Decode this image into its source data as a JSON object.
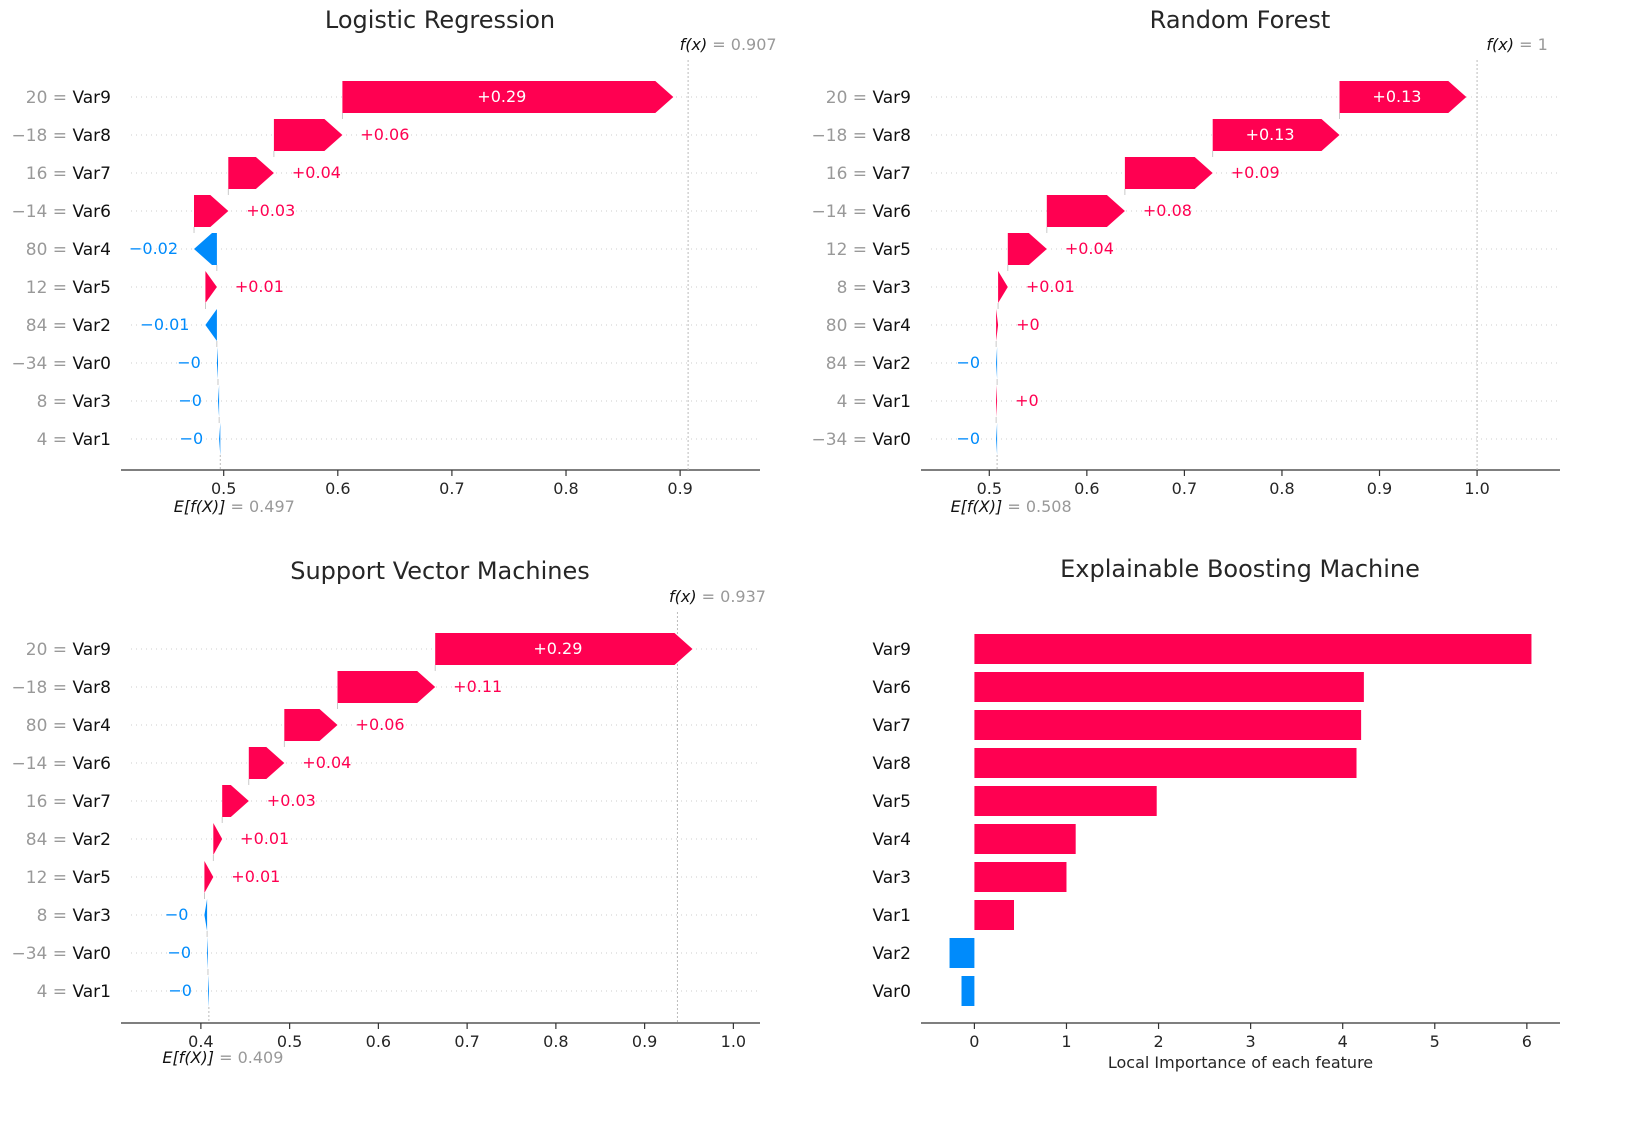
{
  "colors": {
    "positive": "#ff0051",
    "negative": "#008bfb",
    "muted": "#999999"
  },
  "chart_data": [
    {
      "type": "waterfall",
      "title": "Logistic Regression",
      "base_label": "E[f(X)]",
      "base_value": "= 0.497",
      "base": 0.497,
      "fx_label": "f(x)",
      "fx_value": "= 0.907",
      "fx": 0.907,
      "xlim": [
        0.41,
        0.97
      ],
      "xticks": [
        0.5,
        0.6,
        0.7,
        0.8,
        0.9
      ],
      "xtick_labels": [
        "0.5",
        "0.6",
        "0.7",
        "0.8",
        "0.9"
      ],
      "features": [
        {
          "value": "20",
          "name": "Var9",
          "contribution": 0.29,
          "label": "+0.29",
          "inside": true
        },
        {
          "value": "−18",
          "name": "Var8",
          "contribution": 0.06,
          "label": "+0.06"
        },
        {
          "value": "16",
          "name": "Var7",
          "contribution": 0.04,
          "label": "+0.04"
        },
        {
          "value": "−14",
          "name": "Var6",
          "contribution": 0.03,
          "label": "+0.03"
        },
        {
          "value": "80",
          "name": "Var4",
          "contribution": -0.02,
          "label": "−0.02"
        },
        {
          "value": "12",
          "name": "Var5",
          "contribution": 0.01,
          "label": "+0.01"
        },
        {
          "value": "84",
          "name": "Var2",
          "contribution": -0.01,
          "label": "−0.01"
        },
        {
          "value": "−34",
          "name": "Var0",
          "contribution": -0.001,
          "label": "−0"
        },
        {
          "value": "8",
          "name": "Var3",
          "contribution": -0.001,
          "label": "−0"
        },
        {
          "value": "4",
          "name": "Var1",
          "contribution": -0.001,
          "label": "−0"
        }
      ]
    },
    {
      "type": "waterfall",
      "title": "Random Forest",
      "base_label": "E[f(X)]",
      "base_value": "= 0.508",
      "base": 0.508,
      "fx_label": "f(x)",
      "fx_value": "= 1",
      "fx": 1.0,
      "xlim": [
        0.43,
        1.085
      ],
      "xticks": [
        0.5,
        0.6,
        0.7,
        0.8,
        0.9,
        1.0
      ],
      "xtick_labels": [
        "0.5",
        "0.6",
        "0.7",
        "0.8",
        "0.9",
        "1.0"
      ],
      "features": [
        {
          "value": "20",
          "name": "Var9",
          "contribution": 0.13,
          "label": "+0.13",
          "inside": true
        },
        {
          "value": "−18",
          "name": "Var8",
          "contribution": 0.13,
          "label": "+0.13",
          "inside": true
        },
        {
          "value": "16",
          "name": "Var7",
          "contribution": 0.09,
          "label": "+0.09"
        },
        {
          "value": "−14",
          "name": "Var6",
          "contribution": 0.08,
          "label": "+0.08"
        },
        {
          "value": "12",
          "name": "Var5",
          "contribution": 0.04,
          "label": "+0.04"
        },
        {
          "value": "8",
          "name": "Var3",
          "contribution": 0.01,
          "label": "+0.01"
        },
        {
          "value": "80",
          "name": "Var4",
          "contribution": 0.002,
          "label": "+0"
        },
        {
          "value": "84",
          "name": "Var2",
          "contribution": -0.001,
          "label": "−0"
        },
        {
          "value": "4",
          "name": "Var1",
          "contribution": 0.001,
          "label": "+0"
        },
        {
          "value": "−34",
          "name": "Var0",
          "contribution": -0.001,
          "label": "−0"
        }
      ]
    },
    {
      "type": "waterfall",
      "title": "Support Vector Machines",
      "base_label": "E[f(X)]",
      "base_value": "= 0.409",
      "base": 0.409,
      "fx_label": "f(x)",
      "fx_value": "= 0.937",
      "fx": 0.937,
      "xlim": [
        0.31,
        1.03
      ],
      "xticks": [
        0.4,
        0.5,
        0.6,
        0.7,
        0.8,
        0.9,
        1.0
      ],
      "xtick_labels": [
        "0.4",
        "0.5",
        "0.6",
        "0.7",
        "0.8",
        "0.9",
        "1.0"
      ],
      "features": [
        {
          "value": "20",
          "name": "Var9",
          "contribution": 0.29,
          "label": "+0.29",
          "inside": true
        },
        {
          "value": "−18",
          "name": "Var8",
          "contribution": 0.11,
          "label": "+0.11"
        },
        {
          "value": "80",
          "name": "Var4",
          "contribution": 0.06,
          "label": "+0.06"
        },
        {
          "value": "−14",
          "name": "Var6",
          "contribution": 0.04,
          "label": "+0.04"
        },
        {
          "value": "16",
          "name": "Var7",
          "contribution": 0.03,
          "label": "+0.03"
        },
        {
          "value": "84",
          "name": "Var2",
          "contribution": 0.01,
          "label": "+0.01"
        },
        {
          "value": "12",
          "name": "Var5",
          "contribution": 0.01,
          "label": "+0.01"
        },
        {
          "value": "8",
          "name": "Var3",
          "contribution": -0.003,
          "label": "−0"
        },
        {
          "value": "−34",
          "name": "Var0",
          "contribution": -0.001,
          "label": "−0"
        },
        {
          "value": "4",
          "name": "Var1",
          "contribution": -0.001,
          "label": "−0"
        }
      ]
    },
    {
      "type": "bar",
      "orientation": "horizontal",
      "title": "Explainable Boosting Machine",
      "xlabel": "Local Importance of each feature",
      "xlim": [
        -0.58,
        6.36
      ],
      "xticks": [
        0,
        1,
        2,
        3,
        4,
        5,
        6
      ],
      "xtick_labels": [
        "0",
        "1",
        "2",
        "3",
        "4",
        "5",
        "6"
      ],
      "categories": [
        "Var9",
        "Var6",
        "Var7",
        "Var8",
        "Var5",
        "Var4",
        "Var3",
        "Var1",
        "Var2",
        "Var0"
      ],
      "values": [
        6.05,
        4.23,
        4.2,
        4.15,
        1.98,
        1.1,
        1.0,
        0.43,
        -0.27,
        -0.14
      ]
    }
  ]
}
